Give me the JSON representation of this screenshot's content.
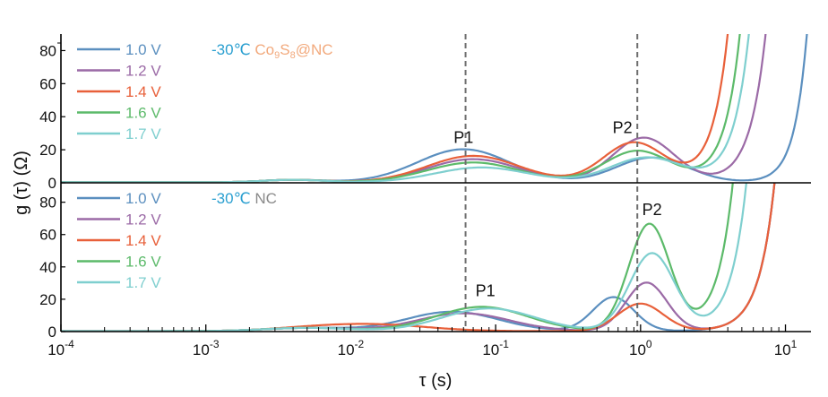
{
  "chart_data": {
    "type": "line",
    "xscale": "log",
    "xlabel_var": "τ",
    "xlabel_unit": "(s)",
    "ylabel_var": "g",
    "ylabel_paren": "(τ)",
    "ylabel_unit": "(Ω)",
    "xlim": [
      0.0001,
      15
    ],
    "x_ticks": [
      {
        "value": 0.0001,
        "base": "10",
        "exp": "-4"
      },
      {
        "value": 0.001,
        "base": "10",
        "exp": "-3"
      },
      {
        "value": 0.01,
        "base": "10",
        "exp": "-2"
      },
      {
        "value": 0.1,
        "base": "10",
        "exp": "-1"
      },
      {
        "value": 1,
        "base": "10",
        "exp": "0"
      },
      {
        "value": 10,
        "base": "10",
        "exp": "1"
      }
    ],
    "vlines": [
      0.062,
      0.95
    ],
    "legend_labels": [
      "1.0 V",
      "1.2 V",
      "1.4 V",
      "1.6 V",
      "1.7 V"
    ],
    "colors": [
      "#5b8fbf",
      "#9b6aa6",
      "#e8603a",
      "#5cba6a",
      "#7fcfcf"
    ],
    "panels": [
      {
        "name": "top",
        "ylim": [
          0,
          90
        ],
        "yticks": [
          "0",
          "20",
          "40",
          "60",
          "80"
        ],
        "temp_label": "-30℃",
        "temp_color": "#2a9fd0",
        "material_parts": [
          "Co",
          "9",
          "S",
          "8",
          "@NC"
        ],
        "material_color": "#f2a97c",
        "peaks": [
          {
            "label": "P1",
            "x": 0.06,
            "y": 24
          },
          {
            "label": "P2",
            "x": 0.75,
            "y": 30
          }
        ],
        "series": [
          {
            "name": "1.0 V",
            "baseline": 0.3,
            "peaks": [
              [
                0.06,
                20,
                0.45
              ],
              [
                1.2,
                15,
                0.35
              ],
              [
                0.004,
                1.5,
                0.3
              ]
            ],
            "rise": [
              14,
              5,
              88
            ]
          },
          {
            "name": "1.2 V",
            "baseline": 0.3,
            "peaks": [
              [
                0.07,
                14,
                0.45
              ],
              [
                1.05,
                27,
                0.3
              ],
              [
                0.004,
                1.5,
                0.3
              ]
            ],
            "rise": [
              8,
              4,
              130
            ]
          },
          {
            "name": "1.4 V",
            "baseline": 0.3,
            "peaks": [
              [
                0.07,
                16,
                0.45
              ],
              [
                0.9,
                24,
                0.3
              ],
              [
                0.004,
                1.5,
                0.3
              ]
            ],
            "rise": [
              5,
              4,
              220
            ]
          },
          {
            "name": "1.6 V",
            "baseline": 0.3,
            "peaks": [
              [
                0.07,
                12,
                0.45
              ],
              [
                0.95,
                19,
                0.32
              ],
              [
                0.004,
                1.5,
                0.3
              ]
            ],
            "rise": [
              6,
              4,
              210
            ]
          },
          {
            "name": "1.7 V",
            "baseline": 0.3,
            "peaks": [
              [
                0.08,
                9,
                0.45
              ],
              [
                1.1,
                15,
                0.35
              ],
              [
                0.004,
                1.5,
                0.3
              ]
            ],
            "rise": [
              7,
              4,
              220
            ]
          }
        ]
      },
      {
        "name": "bottom",
        "ylim": [
          0,
          92
        ],
        "yticks": [
          "0",
          "20",
          "40",
          "60",
          "80"
        ],
        "temp_label": "-30℃",
        "temp_color": "#2a9fd0",
        "material_parts": [
          "NC"
        ],
        "material_color": "#8a8a8a",
        "peaks": [
          {
            "label": "P1",
            "x": 0.085,
            "y": 22
          },
          {
            "label": "P2",
            "x": 1.2,
            "y": 72
          }
        ],
        "series": [
          {
            "name": "1.0 V",
            "baseline": 0.3,
            "peaks": [
              [
                0.05,
                12,
                0.45
              ],
              [
                0.65,
                21,
                0.2
              ],
              [
                0.005,
                2,
                0.4
              ]
            ],
            "rise": [
              12,
              4,
              380
            ]
          },
          {
            "name": "1.2 V",
            "baseline": 0.3,
            "peaks": [
              [
                0.06,
                11,
                0.45
              ],
              [
                1.1,
                30,
                0.2
              ],
              [
                0.005,
                2,
                0.4
              ]
            ],
            "rise": [
              12,
              4,
              380
            ]
          },
          {
            "name": "1.4 V",
            "baseline": 0.3,
            "peaks": [
              [
                0.015,
                4,
                0.5
              ],
              [
                1.0,
                17,
                0.22
              ],
              [
                0.005,
                1.5,
                0.4
              ]
            ],
            "rise": [
              12,
              4,
              380
            ]
          },
          {
            "name": "1.6 V",
            "baseline": 0.3,
            "peaks": [
              [
                0.08,
                15,
                0.45
              ],
              [
                1.15,
                66,
                0.2
              ],
              [
                0.005,
                2,
                0.4
              ]
            ],
            "rise": [
              7.2,
              4,
              700
            ]
          },
          {
            "name": "1.7 V",
            "baseline": 0.3,
            "peaks": [
              [
                0.09,
                14,
                0.45
              ],
              [
                1.2,
                48,
                0.22
              ],
              [
                0.005,
                2,
                0.4
              ]
            ],
            "rise": [
              8,
              4,
              450
            ]
          }
        ]
      }
    ]
  }
}
